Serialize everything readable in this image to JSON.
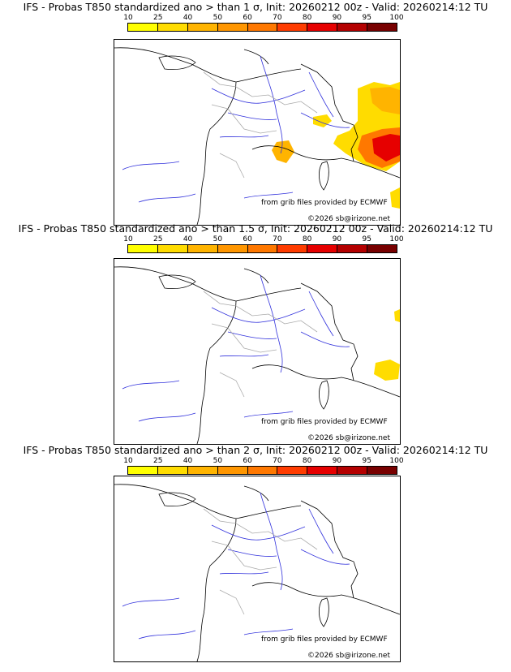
{
  "panels": [
    {
      "title": "IFS - Probas T850  standardized ano > than 1 σ, Init: 20260212 00z - Valid: 20260214:12 TU",
      "source": "from grib files provided by ECMWF",
      "copyright": "©2026 sb@irizone.net"
    },
    {
      "title": "IFS - Probas T850  standardized ano > than 1.5 σ, Init: 20260212 00z - Valid: 20260214:12 TU",
      "source": "from grib files provided by ECMWF",
      "copyright": "©2026 sb@irizone.net"
    },
    {
      "title": "IFS - Probas T850  standardized ano > than 2 σ, Init: 20260212 00z - Valid: 20260214:12 TU",
      "source": "from grib files provided by ECMWF",
      "copyright": "©2026 sb@irizone.net"
    }
  ],
  "legend": {
    "ticks": [
      "10",
      "25",
      "40",
      "50",
      "60",
      "70",
      "80",
      "90",
      "95",
      "100"
    ],
    "colors": [
      "#ffff00",
      "#ffdc00",
      "#ffb400",
      "#ff9600",
      "#ff7800",
      "#ff3c00",
      "#e60000",
      "#b40000",
      "#780000"
    ]
  },
  "colors": {
    "coast": "#000000",
    "river": "#3232dc",
    "border": "#aaaaaa"
  }
}
